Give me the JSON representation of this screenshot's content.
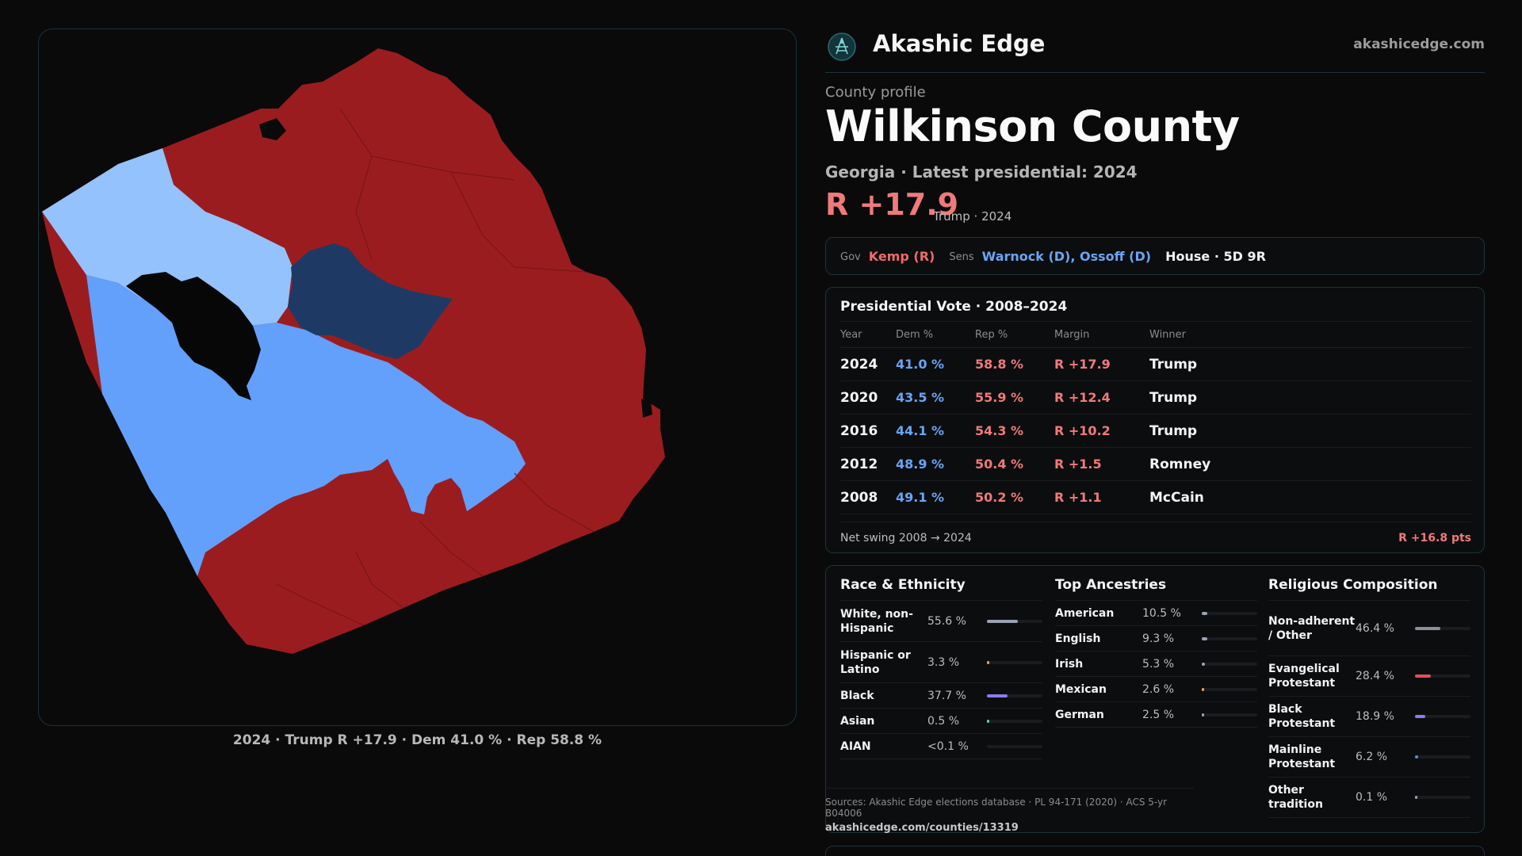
{
  "brand": {
    "name": "Akashic Edge",
    "url": "akashicedge.com"
  },
  "profile": {
    "eyebrow": "County profile",
    "title": "Wilkinson County",
    "subtitle": "Georgia · Latest presidential: 2024",
    "margin": "R +17.9",
    "margin_note": "Trump · 2024"
  },
  "officials": {
    "gov_label": "Gov",
    "gov_value": "Kemp (R)",
    "sens_label": "Sens",
    "sens_value": "Warnock (D), Ossoff (D)",
    "house_value": "House · 5D 9R"
  },
  "presidential": {
    "title": "Presidential Vote · 2008–2024",
    "headers": {
      "year": "Year",
      "dem": "Dem %",
      "rep": "Rep %",
      "margin": "Margin",
      "winner": "Winner"
    },
    "rows": [
      {
        "year": "2024",
        "dem": "41.0 %",
        "rep": "58.8 %",
        "margin": "R +17.9",
        "winner": "Trump"
      },
      {
        "year": "2020",
        "dem": "43.5 %",
        "rep": "55.9 %",
        "margin": "R +12.4",
        "winner": "Trump"
      },
      {
        "year": "2016",
        "dem": "44.1 %",
        "rep": "54.3 %",
        "margin": "R +10.2",
        "winner": "Trump"
      },
      {
        "year": "2012",
        "dem": "48.9 %",
        "rep": "50.4 %",
        "margin": "R +1.5",
        "winner": "Romney"
      },
      {
        "year": "2008",
        "dem": "49.1 %",
        "rep": "50.2 %",
        "margin": "R +1.1",
        "winner": "McCain"
      }
    ],
    "swing_label": "Net swing 2008 → 2024",
    "swing_value": "R +16.8 pts"
  },
  "race": {
    "title": "Race & Ethnicity",
    "rows": [
      {
        "label": "White, non-Hispanic",
        "value": "55.6 %",
        "fraction": 0.556,
        "color": "#9aa3b2"
      },
      {
        "label": "Hispanic or Latino",
        "value": "3.3 %",
        "fraction": 0.033,
        "color": "#f0a24a"
      },
      {
        "label": "Black",
        "value": "37.7 %",
        "fraction": 0.377,
        "color": "#8b7cf0"
      },
      {
        "label": "Asian",
        "value": "0.5 %",
        "fraction": 0.005,
        "color": "#5fd0b0"
      },
      {
        "label": "AIAN",
        "value": "<0.1 %",
        "fraction": 0.0,
        "color": "#9aa3b2"
      }
    ]
  },
  "ancestry": {
    "title": "Top Ancestries",
    "rows": [
      {
        "label": "American",
        "value": "10.5 %",
        "fraction": 0.105,
        "color": "#9aa3b2"
      },
      {
        "label": "English",
        "value": "9.3 %",
        "fraction": 0.093,
        "color": "#9aa3b2"
      },
      {
        "label": "Irish",
        "value": "5.3 %",
        "fraction": 0.053,
        "color": "#9aa3b2"
      },
      {
        "label": "Mexican",
        "value": "2.6 %",
        "fraction": 0.026,
        "color": "#f0a24a"
      },
      {
        "label": "German",
        "value": "2.5 %",
        "fraction": 0.025,
        "color": "#9aa3b2"
      }
    ]
  },
  "religion": {
    "title": "Religious Composition",
    "rows": [
      {
        "label": "Non-adherent / Other",
        "value": "46.4 %",
        "fraction": 0.464,
        "color": "#8a8f99"
      },
      {
        "label": "Evangelical Protestant",
        "value": "28.4 %",
        "fraction": 0.284,
        "color": "#e0505a"
      },
      {
        "label": "Black Protestant",
        "value": "18.9 %",
        "fraction": 0.189,
        "color": "#8b7cf0"
      },
      {
        "label": "Mainline Protestant",
        "value": "6.2 %",
        "fraction": 0.062,
        "color": "#4f8ff0"
      },
      {
        "label": "Other tradition",
        "value": "0.1 %",
        "fraction": 0.001,
        "color": "#9aa3b2"
      }
    ]
  },
  "sources": {
    "text": "Sources: Akashic Edge elections database · PL 94-171 (2020) · ACS 5-yr B04006",
    "url": "akashicedge.com/counties/13319"
  },
  "map": {
    "caption": "2024 · Trump R +17.9 · Dem 41.0 % · Rep 58.8 %",
    "colors": {
      "red": "#9b1c1f",
      "light_blue": "#93c2fd",
      "mid_blue": "#62a0fb",
      "dark_blue": "#1e3a64",
      "black": "#070708"
    }
  }
}
